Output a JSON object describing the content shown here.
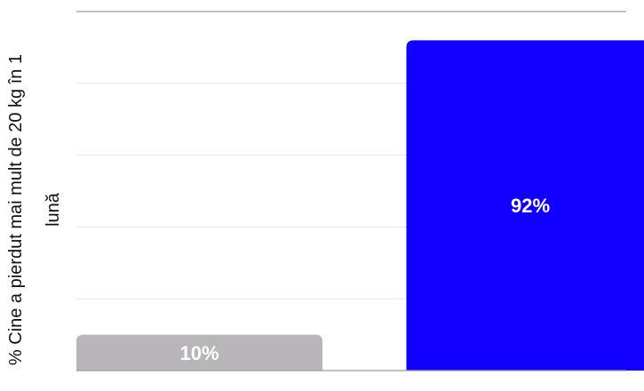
{
  "chart_data": {
    "type": "bar",
    "categories": [
      "",
      ""
    ],
    "values": [
      10,
      92
    ],
    "data_labels": [
      "10%",
      "92%"
    ],
    "colors": [
      "#b8b6b8",
      "#1100ff"
    ],
    "title": "",
    "xlabel": "",
    "ylabel_lines": [
      "% Cine a pierdut mai mult de 20 kg în 1",
      "lună"
    ],
    "ylim": [
      0,
      100
    ],
    "grid": true
  }
}
